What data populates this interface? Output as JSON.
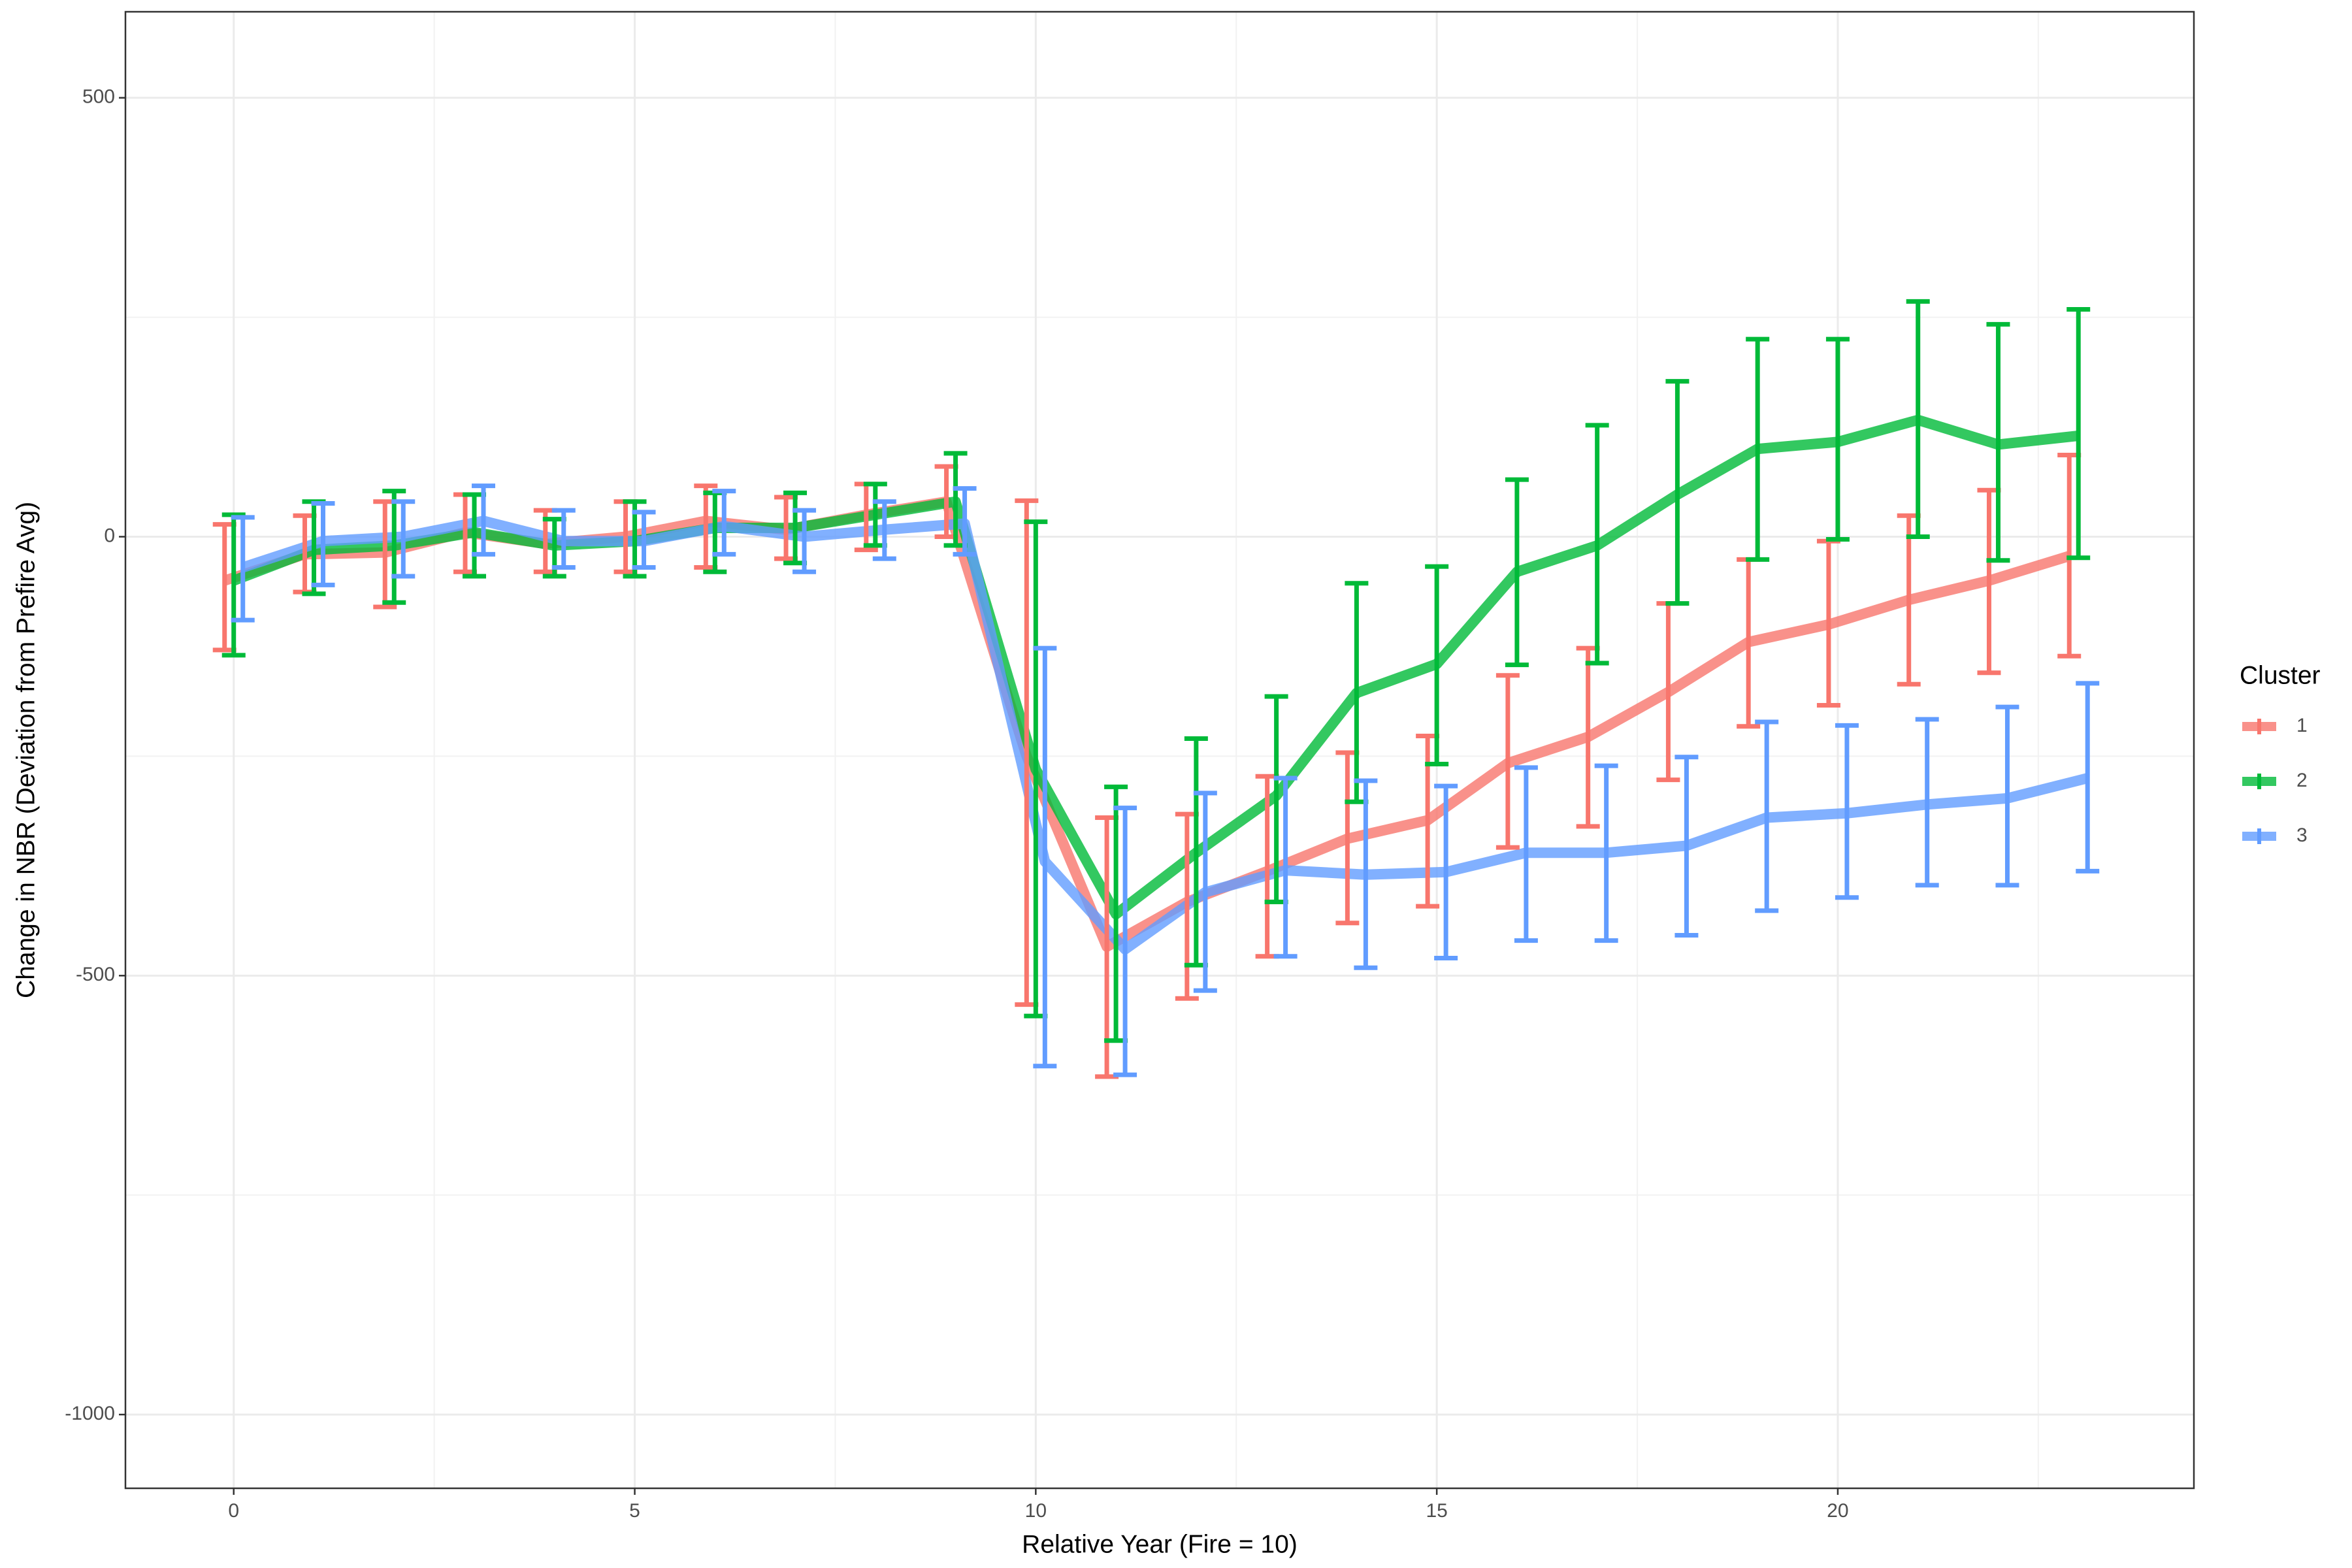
{
  "chart_data": {
    "type": "line",
    "x_label": "Relative Year (Fire = 10)",
    "y_label": "Change in NBR (Deviation from Prefire Avg)",
    "legend_title": "Cluster",
    "legend": "right",
    "grid": true,
    "x": [
      0,
      1,
      2,
      3,
      4,
      5,
      6,
      7,
      8,
      9,
      10,
      11,
      12,
      13,
      14,
      15,
      16,
      17,
      18,
      19,
      20,
      21,
      22,
      23
    ],
    "xlim": [
      -1.35,
      24.44
    ],
    "xticks": [
      0,
      5,
      10,
      15,
      20
    ],
    "xminor": [
      2.5,
      7.5,
      12.5,
      17.5,
      22.5
    ],
    "ylim": [
      -1084,
      598
    ],
    "yticks": [
      -1000,
      -500,
      0,
      500
    ],
    "yminor": [
      -750,
      -250,
      250
    ],
    "series": [
      {
        "name": "1",
        "color": "#F8766D",
        "values": [
          -50,
          -20,
          -18,
          5,
          -8,
          0,
          18,
          8,
          25,
          40,
          -250,
          -467,
          -416,
          -381,
          -344,
          -323,
          -258,
          -228,
          -177,
          -120,
          -100,
          -72,
          -50,
          -22
        ],
        "lower": [
          -129,
          -63,
          -80,
          -40,
          -40,
          -40,
          -35,
          -25,
          -15,
          0,
          -533,
          -615,
          -526,
          -478,
          -440,
          -421,
          -354,
          -330,
          -277,
          -216,
          -192,
          -168,
          -155,
          -136
        ],
        "upper": [
          14,
          24,
          40,
          48,
          30,
          40,
          58,
          45,
          60,
          80,
          41,
          -320,
          -316,
          -273,
          -246,
          -227,
          -158,
          -127,
          -76,
          -26,
          -5,
          24,
          53,
          93
        ]
      },
      {
        "name": "2",
        "color": "#00BA38",
        "values": [
          -50,
          -15,
          -10,
          5,
          -10,
          -5,
          10,
          10,
          25,
          40,
          -265,
          -430,
          -360,
          -295,
          -178,
          -145,
          -40,
          -10,
          48,
          100,
          108,
          133,
          105,
          115
        ],
        "lower": [
          -135,
          -65,
          -75,
          -45,
          -45,
          -45,
          -40,
          -30,
          -10,
          -10,
          -546,
          -574,
          -488,
          -416,
          -302,
          -259,
          -146,
          -144,
          -76,
          -26,
          -3,
          0,
          -27,
          -24
        ],
        "upper": [
          25,
          40,
          52,
          48,
          20,
          40,
          50,
          50,
          60,
          95,
          17,
          -285,
          -230,
          -182,
          -53,
          -34,
          65,
          127,
          177,
          225,
          225,
          268,
          242,
          259
        ]
      },
      {
        "name": "3",
        "color": "#619CFF",
        "values": [
          -35,
          -5,
          0,
          18,
          -5,
          -5,
          12,
          0,
          8,
          15,
          -370,
          -470,
          -405,
          -380,
          -385,
          -382,
          -360,
          -360,
          -352,
          -320,
          -315,
          -305,
          -298,
          -275
        ],
        "lower": [
          -95,
          -55,
          -45,
          -20,
          -35,
          -35,
          -20,
          -40,
          -25,
          -20,
          -603,
          -613,
          -517,
          -478,
          -491,
          -480,
          -460,
          -460,
          -454,
          -426,
          -411,
          -397,
          -397,
          -381
        ],
        "upper": [
          22,
          38,
          40,
          58,
          30,
          28,
          52,
          30,
          40,
          55,
          -127,
          -309,
          -292,
          -275,
          -278,
          -284,
          -263,
          -261,
          -251,
          -211,
          -215,
          -208,
          -194,
          -167
        ]
      }
    ]
  }
}
